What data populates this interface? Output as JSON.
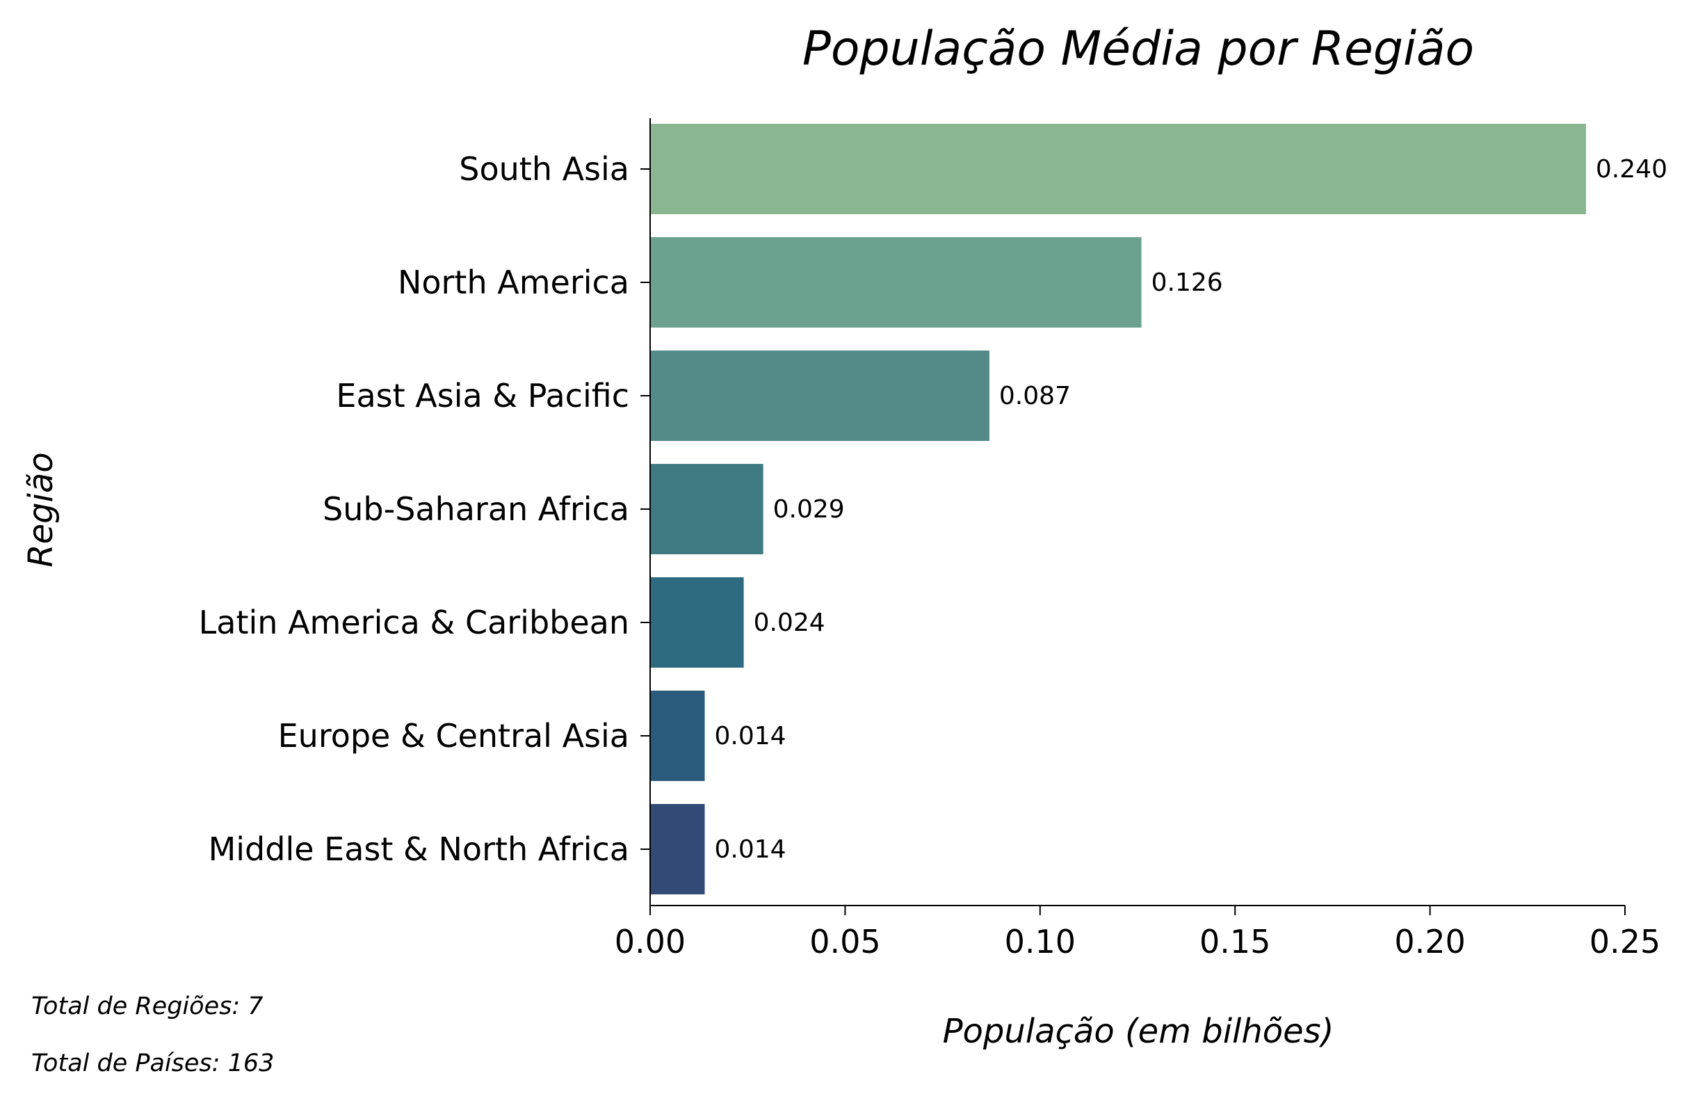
{
  "chart_data": {
    "type": "bar",
    "orientation": "horizontal",
    "title": "População Média por Região",
    "xlabel": "População (em bilhões)",
    "ylabel": "Região",
    "categories": [
      "South Asia",
      "North America",
      "East Asia & Pacific",
      "Sub-Saharan Africa",
      "Latin America & Caribbean",
      "Europe & Central Asia",
      "Middle East & North Africa"
    ],
    "values": [
      0.24,
      0.126,
      0.087,
      0.029,
      0.024,
      0.014,
      0.014
    ],
    "value_labels": [
      "0.240",
      "0.126",
      "0.087",
      "0.029",
      "0.024",
      "0.014",
      "0.014"
    ],
    "colors": [
      "#8bb692",
      "#6ba28f",
      "#528b87",
      "#3f7a82",
      "#2f6b80",
      "#2b5b7c",
      "#324a75"
    ],
    "xlim": [
      0,
      0.25
    ],
    "xticks": [
      "0.00",
      "0.05",
      "0.10",
      "0.15",
      "0.20",
      "0.25"
    ],
    "grid": false
  },
  "notes": {
    "regions": "Total de Regiões: 7",
    "countries": "Total de Países: 163"
  }
}
